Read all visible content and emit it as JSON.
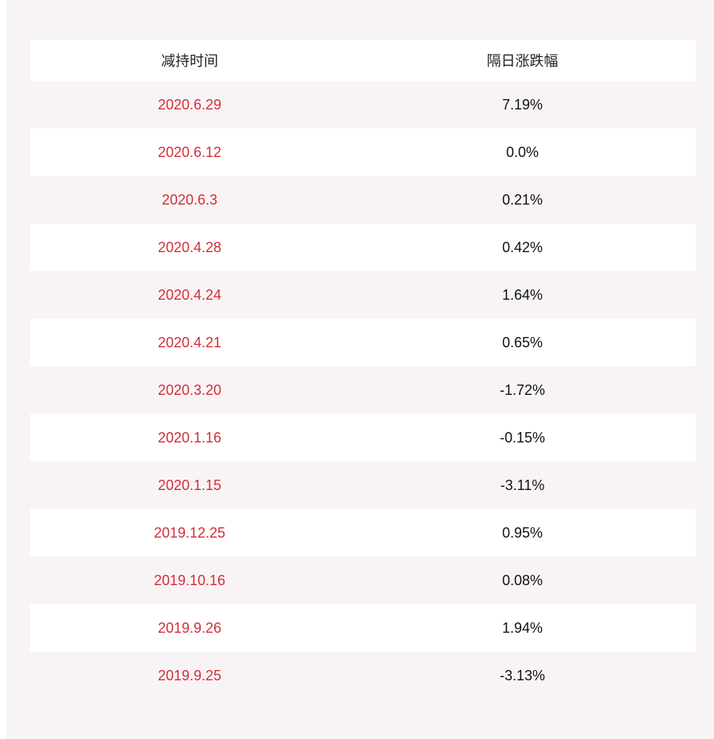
{
  "table": {
    "header": [
      "减持时间",
      "隔日涨跌幅"
    ],
    "rows": [
      [
        "2020.6.29",
        "7.19%"
      ],
      [
        "2020.6.12",
        "0.0%"
      ],
      [
        "2020.6.3",
        "0.21%"
      ],
      [
        "2020.4.28",
        "0.42%"
      ],
      [
        "2020.4.24",
        "1.64%"
      ],
      [
        "2020.4.21",
        "0.65%"
      ],
      [
        "2020.3.20",
        "-1.72%"
      ],
      [
        "2020.1.16",
        "-0.15%"
      ],
      [
        "2020.1.15",
        "-3.11%"
      ],
      [
        "2019.12.25",
        "0.95%"
      ],
      [
        "2019.10.16",
        "0.08%"
      ],
      [
        "2019.9.26",
        "1.94%"
      ],
      [
        "2019.9.25",
        "-3.13%"
      ]
    ]
  }
}
